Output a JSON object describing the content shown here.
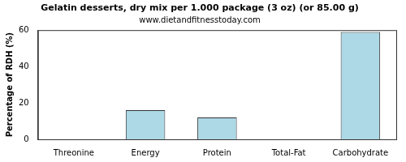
{
  "chart_data": {
    "type": "bar",
    "title": "Gelatin desserts, dry mix per 1.000 package (3 oz) (or 85.00 g)",
    "subtitle": "www.dietandfitnesstoday.com",
    "y_label": "Percentage of RDH (%)",
    "categories": [
      "Threonine",
      "Energy",
      "Protein",
      "Total-Fat",
      "Carbohydrate"
    ],
    "values": [
      0,
      16,
      12,
      0,
      59
    ],
    "color": "#add8e6",
    "ylim": [
      0,
      60
    ],
    "yticks": [
      0,
      20,
      40,
      60
    ],
    "grid": false
  }
}
